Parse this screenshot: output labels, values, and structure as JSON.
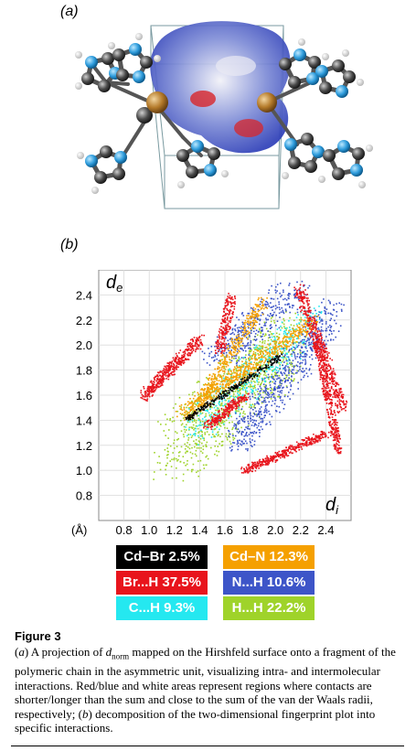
{
  "panel_a_label": "(a)",
  "panel_b_label": "(b)",
  "chart_data": {
    "type": "scatter",
    "xlabel": "d",
    "xlabel_sub": "i",
    "ylabel": "d",
    "ylabel_sub": "e",
    "unit": "(Å)",
    "xlim": [
      0.6,
      2.6
    ],
    "ylim": [
      0.6,
      2.6
    ],
    "x_ticks": [
      "0.8",
      "1.0",
      "1.2",
      "1.4",
      "1.6",
      "1.8",
      "2.0",
      "2.2",
      "2.4"
    ],
    "y_ticks": [
      "2.4",
      "2.2",
      "2.0",
      "1.8",
      "1.6",
      "1.4",
      "1.2",
      "1.0",
      "0.8"
    ],
    "grid": true,
    "series": [
      {
        "name": "Cd–Br 2.5%",
        "color": "#000000"
      },
      {
        "name": "Cd–N 12.3%",
        "color": "#f5a000"
      },
      {
        "name": "Br...H 37.5%",
        "color": "#e8141c"
      },
      {
        "name": "N...H 10.6%",
        "color": "#3d55c8"
      },
      {
        "name": "C...H 9.3%",
        "color": "#25e8f0"
      },
      {
        "name": "H...H 22.2%",
        "color": "#9fd32a"
      }
    ]
  },
  "legend": [
    {
      "label": "Cd–Br 2.5%",
      "bg": "#000000",
      "fg": "#ffffff"
    },
    {
      "label": "Cd–N 12.3%",
      "bg": "#f5a000",
      "fg": "#ffffff"
    },
    {
      "label": "Br...H 37.5%",
      "bg": "#e8141c",
      "fg": "#ffffff"
    },
    {
      "label": "N...H 10.6%",
      "bg": "#3d55c8",
      "fg": "#ffffff"
    },
    {
      "label": "C...H 9.3%",
      "bg": "#25e8f0",
      "fg": "#ffffff"
    },
    {
      "label": "H...H 22.2%",
      "bg": "#9fd32a",
      "fg": "#ffffff"
    }
  ],
  "caption": {
    "figure_label": "Figure 3",
    "text_part1": "(",
    "text_a": "a",
    "text_part2": ") A projection of ",
    "dnorm_d": "d",
    "dnorm_sub": "norm",
    "text_part3": " mapped on the Hirshfeld surface onto a fragment of the polymeric chain in the asymmetric unit, visualizing intra- and intermolecular interactions. Red/blue and white areas represent regions where contacts are shorter/longer than the sum and close to the sum of the van der Waals radii, respectively; (",
    "text_b": "b",
    "text_part4": ") decomposition of the two-dimensional fingerprint plot into specific interactions."
  }
}
